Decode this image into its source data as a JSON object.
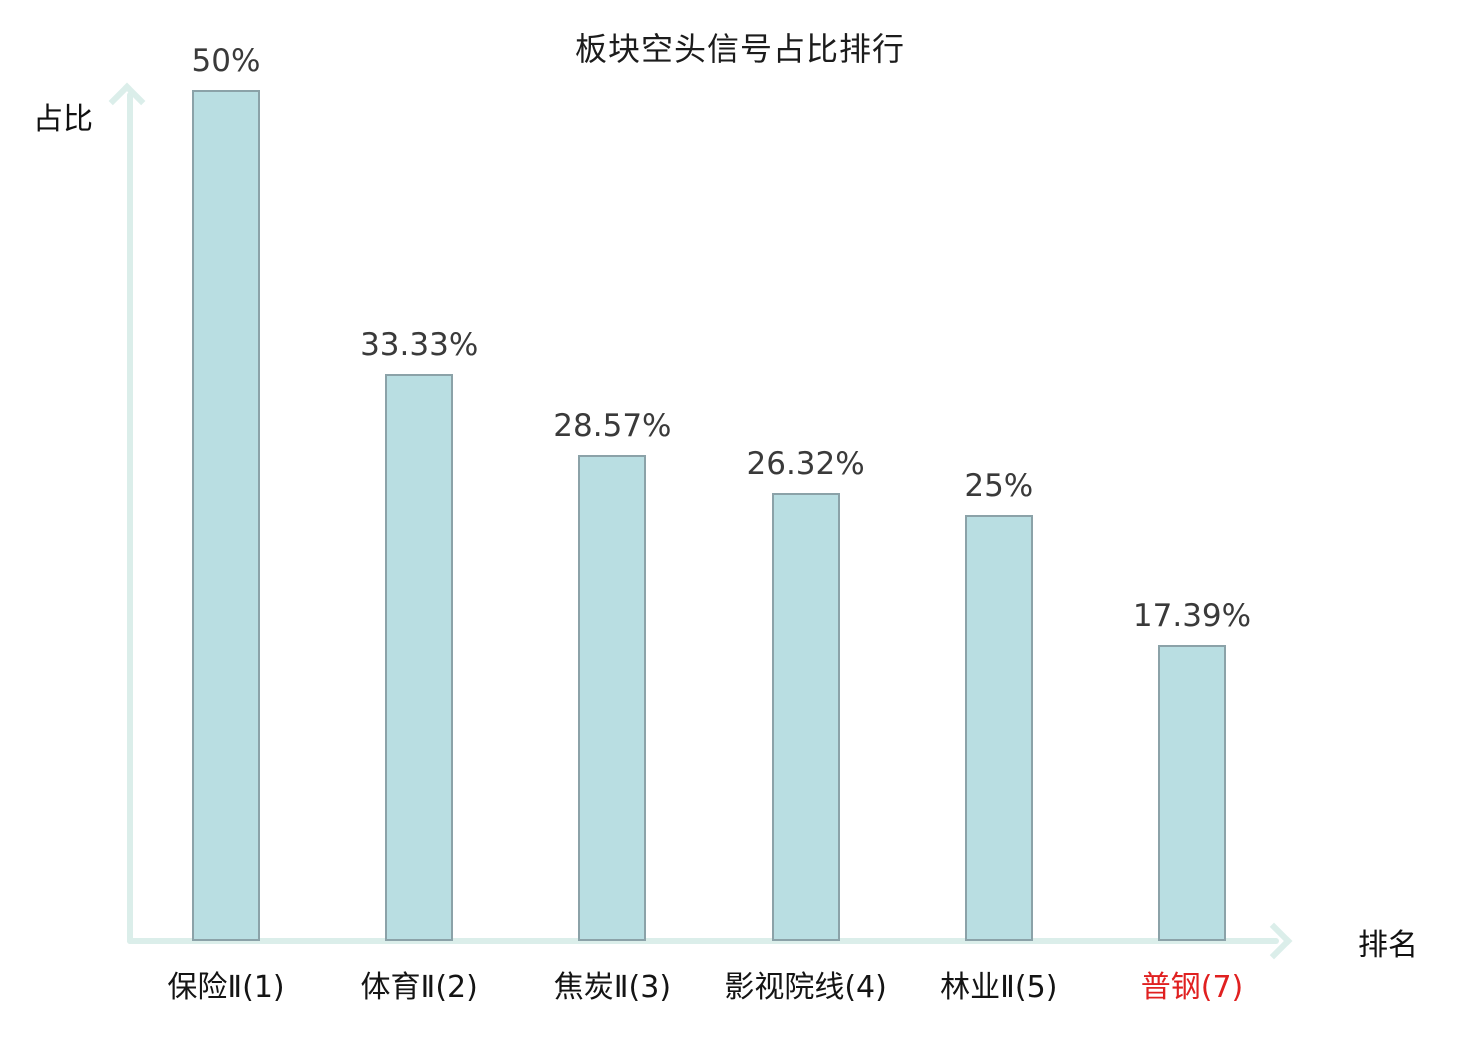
{
  "title": "板块空头信号占比排行",
  "axes": {
    "y_label": "占比",
    "x_label": "排名"
  },
  "colors": {
    "bar_fill": "#b9dee2",
    "bar_border": "#8ba2a8",
    "axis": "#dbeeea",
    "value_text": "#3a3a3a",
    "category_text": "#141414",
    "highlight_text": "#e02020",
    "title_text": "#1c1c1c"
  },
  "chart_data": {
    "type": "bar",
    "title": "板块空头信号占比排行",
    "xlabel": "排名",
    "ylabel": "占比",
    "categories": [
      "保险Ⅱ(1)",
      "体育Ⅱ(2)",
      "焦炭Ⅱ(3)",
      "影视院线(4)",
      "林业Ⅱ(5)",
      "普钢(7)"
    ],
    "values": [
      50,
      33.33,
      28.57,
      26.32,
      25,
      17.39
    ],
    "value_labels": [
      "50%",
      "33.33%",
      "28.57%",
      "26.32%",
      "25%",
      "17.39%"
    ],
    "highlight_index": 5,
    "ylim": [
      0,
      50
    ],
    "grid": false,
    "legend": false
  }
}
